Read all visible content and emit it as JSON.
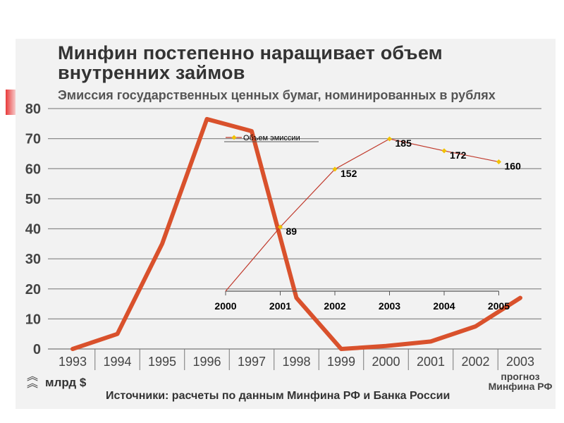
{
  "title_line1": "Минфин постепенно наращивает объем",
  "title_line2": "внутренних займов",
  "subtitle": "Эмиссия государственных ценных бумаг, номинированных в рублях",
  "unit_label": "млрд $",
  "source": "Источники: расчеты по данным Минфина РФ и Банка России",
  "forecast_line1": "прогноз",
  "forecast_line2": "Минфина РФ",
  "colors": {
    "main_line": "#d9512c",
    "inset_line": "#c0392b",
    "inset_marker": "#f2c200",
    "grid": "#8c8c8c"
  },
  "chart_data": [
    {
      "type": "line",
      "categories": [
        "1993",
        "1994",
        "1995",
        "1996",
        "1997",
        "1998",
        "1999",
        "2000",
        "2001",
        "2002",
        "2003"
      ],
      "series": [
        {
          "values": [
            0,
            5,
            35,
            76.5,
            72.5,
            17,
            0,
            1,
            2.5,
            7.5,
            17
          ]
        }
      ],
      "y_ticks": [
        0,
        10,
        20,
        30,
        40,
        50,
        60,
        70,
        80
      ],
      "ylim": [
        0,
        80
      ],
      "grid": true
    },
    {
      "type": "line",
      "categories": [
        "2000",
        "2001",
        "2002",
        "2003",
        "2004",
        "2005"
      ],
      "series": [
        {
          "name": "Объем эмиссии",
          "values": [
            null,
            89,
            152,
            185,
            172,
            160
          ]
        }
      ],
      "data_labels": [
        "",
        "89",
        "152",
        "185",
        "172",
        "160"
      ],
      "legend": "top-left"
    }
  ]
}
